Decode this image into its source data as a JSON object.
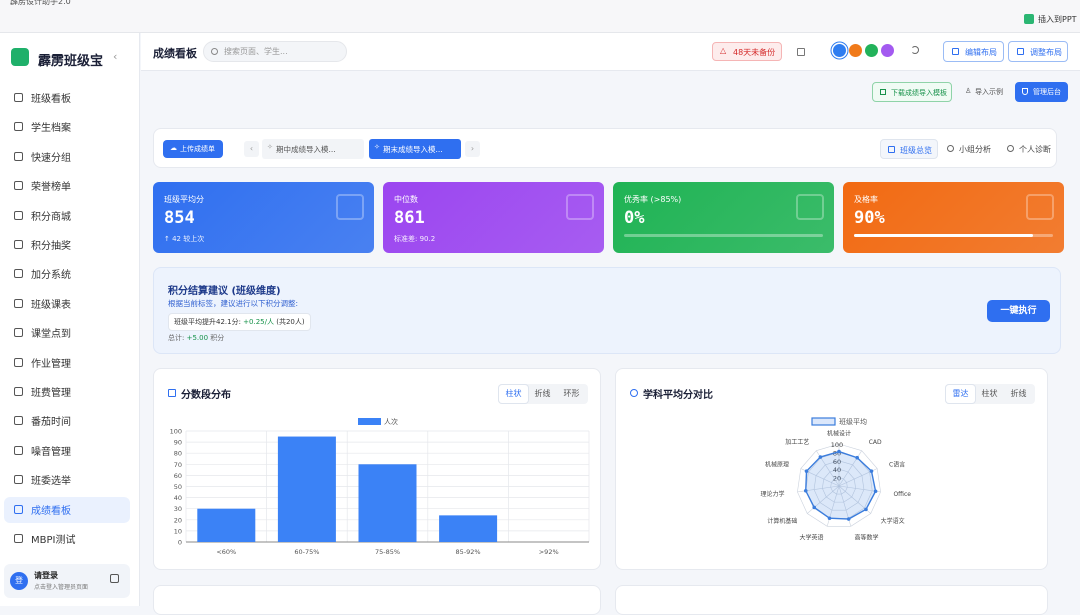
{
  "window": {
    "title": "霹雳设计助手2.0",
    "insert_ppt": "插入到PPT"
  },
  "sidebar": {
    "brand": "霹雳班级宝",
    "nav": [
      "班级看板",
      "学生档案",
      "快速分组",
      "荣誉榜单",
      "积分商城",
      "积分抽奖",
      "加分系统",
      "班级课表",
      "课堂点到",
      "作业管理",
      "班费管理",
      "番茄时间",
      "噪音管理",
      "班委选举",
      "成绩看板",
      "MBPI测试"
    ],
    "active_index": 14,
    "user": {
      "avatar": "登",
      "name": "请登录",
      "hint": "点击登入管理员页面"
    }
  },
  "header": {
    "title": "成绩看板",
    "search_placeholder": "搜索页面、学生...",
    "backup_warning": "48天未备份",
    "edit_layout": "编辑布局",
    "adjust_layout": "调整布局"
  },
  "toolbar": {
    "download": "下载成绩导入模板",
    "import_example": "导入示例",
    "manage": "管理后台"
  },
  "tabs": {
    "upload": "上传成绩单",
    "items": [
      "期中成绩导入模...",
      "期末成绩导入模..."
    ],
    "active_item": 1,
    "views": [
      "班级总览",
      "小组分析",
      "个人诊断"
    ],
    "active_view": 0
  },
  "stats": [
    {
      "label": "班级平均分",
      "value": 854,
      "note": "↑ 42 较上次",
      "color": "#2f6ff0"
    },
    {
      "label": "中位数",
      "value": 861,
      "note": "标准差: 90.2",
      "color": "#9b45f0"
    },
    {
      "label": "优秀率 (>85%)",
      "value": 0,
      "value_label": "0%",
      "color": "#1fb354"
    },
    {
      "label": "及格率",
      "value": 90,
      "value_label": "90%",
      "color": "#f26a12"
    }
  ],
  "suggestion": {
    "title": "积分结算建议 (班级维度)",
    "subtitle": "根据当前标签，建议进行以下积分调整:",
    "tag_prefix": "班级平均提升42.1分: ",
    "tag_highlight": "+0.25/人",
    "tag_suffix": " (共20人)",
    "total_prefix": "总计: ",
    "total_highlight": "+5.00",
    "total_suffix": " 积分",
    "button": "一键执行"
  },
  "chart_data": [
    {
      "type": "bar",
      "title": "分数段分布",
      "toggles": [
        "柱状",
        "折线",
        "环形"
      ],
      "active_toggle": 0,
      "categories": [
        "<60%",
        "60-75%",
        "75-85%",
        "85-92%",
        ">92%"
      ],
      "series": [
        {
          "name": "人次",
          "color": "#3b82f6",
          "values": [
            30,
            95,
            70,
            24,
            0
          ]
        }
      ],
      "ylim": [
        0,
        100
      ],
      "yticks": [
        0,
        10,
        20,
        30,
        40,
        50,
        60,
        70,
        80,
        90,
        100
      ],
      "grid": true
    },
    {
      "type": "radar",
      "title": "学科平均分对比",
      "toggles": [
        "雷达",
        "柱状",
        "折线"
      ],
      "active_toggle": 0,
      "categories": [
        "机械设计",
        "CAD",
        "C语言",
        "Office",
        "大学语文",
        "高等数学",
        "大学英语",
        "计算机基础",
        "理论力学",
        "机械原理",
        "加工工艺"
      ],
      "series": [
        {
          "name": "班级平均",
          "color": "#3b7ddd",
          "values": [
            82,
            80,
            85,
            88,
            85,
            82,
            80,
            78,
            80,
            85,
            82
          ]
        }
      ],
      "rlim": [
        0,
        100
      ],
      "rticks": [
        20,
        40,
        60,
        80,
        100
      ]
    }
  ]
}
